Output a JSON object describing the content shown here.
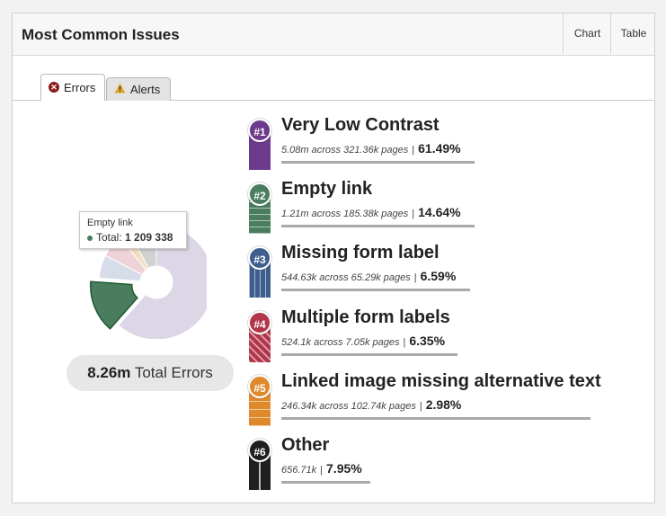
{
  "header": {
    "title": "Most Common Issues",
    "chart_label": "Chart",
    "table_label": "Table"
  },
  "tabs": [
    {
      "label": "Errors"
    },
    {
      "label": "Alerts"
    }
  ],
  "tooltip": {
    "title": "Empty link",
    "total_label": "Total:",
    "total_value": "1 209 338"
  },
  "summary": {
    "value": "8.26m",
    "label": "Total Errors"
  },
  "issues": [
    {
      "rank": "#1",
      "name": "Very Low Contrast",
      "detail": "5.08m across 321.36k pages",
      "sep": "|",
      "percent": "61.49%",
      "color": "#6b3a8a"
    },
    {
      "rank": "#2",
      "name": "Empty link",
      "detail": "1.21m across 185.38k pages",
      "sep": "|",
      "percent": "14.64%",
      "color": "#4a7d5e"
    },
    {
      "rank": "#3",
      "name": "Missing form label",
      "detail": "544.63k across 65.29k pages",
      "sep": "|",
      "percent": "6.59%",
      "color": "#3e5f8e"
    },
    {
      "rank": "#4",
      "name": "Multiple form labels",
      "detail": "524.1k across 7.05k pages",
      "sep": "|",
      "percent": "6.35%",
      "color": "#b2364a"
    },
    {
      "rank": "#5",
      "name": "Linked image missing alternative text",
      "detail": "246.34k across 102.74k pages",
      "sep": "|",
      "percent": "2.98%",
      "color": "#de8a2c"
    },
    {
      "rank": "#6",
      "name": "Other",
      "detail": "656.71k",
      "sep": "|",
      "percent": "7.95%",
      "color": "#1f1f1f"
    }
  ],
  "chart_data": {
    "type": "pie",
    "categories": [
      "Very Low Contrast",
      "Empty link",
      "Missing form label",
      "Multiple form labels",
      "Linked image missing alternative text",
      "Other"
    ],
    "values": [
      61.49,
      14.64,
      6.59,
      6.35,
      2.98,
      7.95
    ],
    "highlighted": "Empty link"
  }
}
